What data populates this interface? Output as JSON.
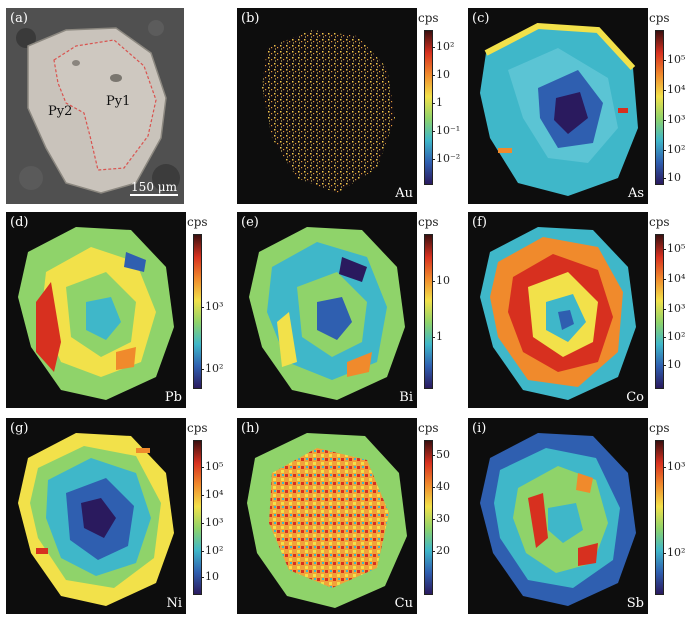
{
  "panels": [
    {
      "label": "(a)",
      "element": "",
      "minerals": [
        "Py2",
        "Py1"
      ],
      "scale_bar": "150 μm"
    },
    {
      "label": "(b)",
      "element": "Au",
      "cbar_title": "cps",
      "ticks": [
        "10²",
        "10",
        "1",
        "10⁻¹",
        "10⁻²"
      ]
    },
    {
      "label": "(c)",
      "element": "As",
      "cbar_title": "cps",
      "ticks": [
        "10⁵",
        "10⁴",
        "10³",
        "10²",
        "10"
      ]
    },
    {
      "label": "(d)",
      "element": "Pb",
      "cbar_title": "cps",
      "ticks": [
        "10³",
        "10²"
      ]
    },
    {
      "label": "(e)",
      "element": "Bi",
      "cbar_title": "cps",
      "ticks": [
        "10",
        "1"
      ]
    },
    {
      "label": "(f)",
      "element": "Co",
      "cbar_title": "cps",
      "ticks": [
        "10⁵",
        "10⁴",
        "10³",
        "10²",
        "10"
      ]
    },
    {
      "label": "(g)",
      "element": "Ni",
      "cbar_title": "cps",
      "ticks": [
        "10⁵",
        "10⁴",
        "10³",
        "10²",
        "10"
      ]
    },
    {
      "label": "(h)",
      "element": "Cu",
      "cbar_title": "cps",
      "ticks": [
        "50",
        "40",
        "30",
        "20"
      ]
    },
    {
      "label": "(i)",
      "element": "Sb",
      "cbar_title": "cps",
      "ticks": [
        "10³",
        "10²"
      ]
    }
  ],
  "colors": {
    "map_background": "#0d0d0d",
    "bse_background": "#4a4a4a",
    "grain_bse": "#c9c3bb",
    "py1_outline": "#d9534f",
    "colormap": [
      "#2a1a5e",
      "#2f5fb0",
      "#3fb7c9",
      "#8fd36a",
      "#f2e14a",
      "#f08a2c",
      "#d7301f",
      "#3b1010"
    ]
  }
}
